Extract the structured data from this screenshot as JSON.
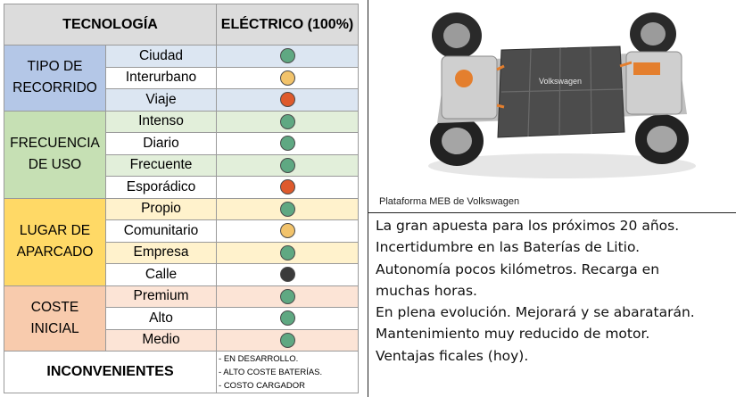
{
  "table": {
    "header": {
      "col1": "TECNOLOGÍA",
      "col3": "ELÉCTRICO (100%)"
    },
    "groups": [
      {
        "label": "TIPO DE\nRECORRIDO",
        "color": "#dce6f2",
        "rows": [
          {
            "label": "Ciudad",
            "status": "green"
          },
          {
            "label": "Interurbano",
            "status": "yellow"
          },
          {
            "label": "Viaje",
            "status": "red"
          }
        ]
      },
      {
        "label": "FRECUENCIA\nDE USO",
        "color": "#e2efda",
        "rows": [
          {
            "label": "Intenso",
            "status": "green"
          },
          {
            "label": "Diario",
            "status": "green"
          },
          {
            "label": "Frecuente",
            "status": "green"
          },
          {
            "label": "Esporádico",
            "status": "red"
          }
        ]
      },
      {
        "label": "LUGAR DE\nAPARCADO",
        "color": "#fff2cc",
        "rows": [
          {
            "label": "Propio",
            "status": "green"
          },
          {
            "label": "Comunitario",
            "status": "yellow"
          },
          {
            "label": "Empresa",
            "status": "green"
          },
          {
            "label": "Calle",
            "status": "black"
          }
        ]
      },
      {
        "label": "COSTE\nINICIAL",
        "color": "#fce4d6",
        "rows": [
          {
            "label": "Premium",
            "status": "green"
          },
          {
            "label": "Alto",
            "status": "green"
          },
          {
            "label": "Medio",
            "status": "green"
          }
        ]
      }
    ],
    "footer": {
      "title": "INCONVENIENTES",
      "items": [
        "- EN DESARROLLO.",
        "- ALTO COSTE BATERÍAS.",
        "- COSTO CARGADOR"
      ]
    }
  },
  "group_strong_colors": [
    "#b4c7e7",
    "#c6e0b4",
    "#ffd966",
    "#f8cbad"
  ],
  "status_colors": {
    "green": "#5fa882",
    "yellow": "#f2c36b",
    "red": "#de5a2c",
    "black": "#3a3a3a"
  },
  "figure": {
    "battery_brand": "Volkswagen",
    "caption": "Plataforma MEB de Volkswagen"
  },
  "description_lines": [
    "La gran apuesta para los próximos 20 años.",
    "Incertidumbre en las Baterías de Litio.",
    "Autonomía pocos kilómetros. Recarga en",
    "muchas horas.",
    "En plena evolución. Mejorará y se abaratarán.",
    "Mantenimiento muy reducido de motor.",
    "Ventajas ficales (hoy)."
  ]
}
